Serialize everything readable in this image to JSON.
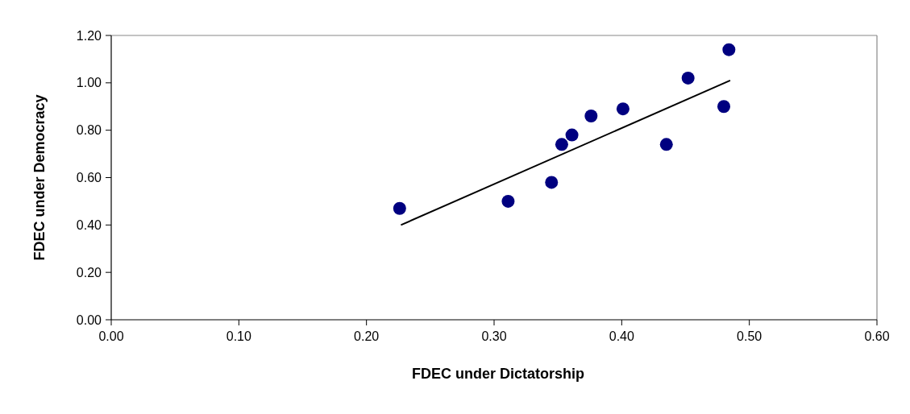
{
  "chart_data": {
    "type": "scatter",
    "xlabel": "FDEC under Dictatorship",
    "ylabel": "FDEC under Democracy",
    "xlim": [
      0,
      0.6
    ],
    "ylim": [
      0,
      1.2
    ],
    "xticks": [
      {
        "value": 0,
        "label": "0.00"
      },
      {
        "value": 0.1,
        "label": "0.10"
      },
      {
        "value": 0.2,
        "label": "0.20"
      },
      {
        "value": 0.3,
        "label": "0.30"
      },
      {
        "value": 0.4,
        "label": "0.40"
      },
      {
        "value": 0.5,
        "label": "0.50"
      },
      {
        "value": 0.6,
        "label": "0.60"
      }
    ],
    "yticks": [
      {
        "value": 0,
        "label": "0.00"
      },
      {
        "value": 0.2,
        "label": "0.20"
      },
      {
        "value": 0.4,
        "label": "0.40"
      },
      {
        "value": 0.6,
        "label": "0.60"
      },
      {
        "value": 0.8,
        "label": "0.80"
      },
      {
        "value": 1,
        "label": "1.00"
      },
      {
        "value": 1.2,
        "label": "1.20"
      }
    ],
    "grid": false,
    "series": [
      {
        "marker": "circle",
        "color": "#000080",
        "x": [
          0.226,
          0.311,
          0.345,
          0.353,
          0.361,
          0.376,
          0.401,
          0.435,
          0.452,
          0.48,
          0.484
        ],
        "values": [
          0.47,
          0.5,
          0.58,
          0.74,
          0.78,
          0.86,
          0.89,
          0.74,
          1.02,
          0.9,
          1.14
        ]
      },
      {
        "type": "line",
        "color": "#000000",
        "x": [
          0.227,
          0.485
        ],
        "values": [
          0.4,
          1.01
        ]
      }
    ]
  }
}
